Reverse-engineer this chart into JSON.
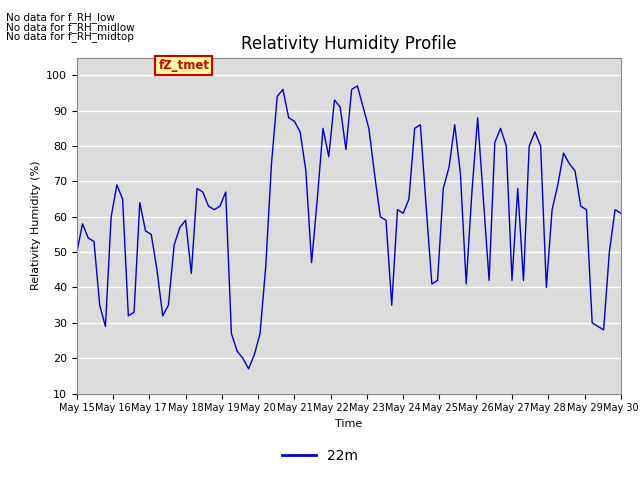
{
  "title": "Relativity Humidity Profile",
  "ylabel": "Relativity Humidity (%)",
  "xlabel": "Time",
  "ylim": [
    10,
    105
  ],
  "yticks": [
    10,
    20,
    30,
    40,
    50,
    60,
    70,
    80,
    90,
    100
  ],
  "legend_label": "22m",
  "line_color": "#0000CC",
  "bg_color": "#DCDCDC",
  "no_data_texts": [
    "No data for f_RH_low",
    "No data for f_RH_midlow",
    "No data for f_RH_midtop"
  ],
  "legend_box_color": "#FFFF99",
  "legend_box_edge": "#CC0000",
  "legend_text_color": "#CC0000",
  "tz_label": "fZ_tmet",
  "xticklabels": [
    "May 15",
    "May 16",
    "May 17",
    "May 18",
    "May 19",
    "May 20",
    "May 21",
    "May 22",
    "May 23",
    "May 24",
    "May 25",
    "May 26",
    "May 27",
    "May 28",
    "May 29",
    "May 30"
  ],
  "humidity_data": [
    50,
    58,
    54,
    53,
    35,
    29,
    60,
    69,
    65,
    32,
    33,
    64,
    56,
    55,
    45,
    32,
    35,
    52,
    57,
    59,
    44,
    68,
    67,
    63,
    62,
    63,
    67,
    27,
    22,
    20,
    17,
    21,
    27,
    46,
    75,
    94,
    96,
    88,
    87,
    84,
    73,
    47,
    65,
    85,
    77,
    93,
    91,
    79,
    96,
    97,
    91,
    85,
    72,
    60,
    59,
    35,
    62,
    61,
    65,
    85,
    86,
    63,
    41,
    42,
    68,
    74,
    86,
    72,
    41,
    67,
    88,
    65,
    42,
    81,
    85,
    80,
    42,
    68,
    42,
    80,
    84,
    80,
    40,
    62,
    69,
    78,
    75,
    73,
    63,
    62,
    30,
    29,
    28,
    50,
    62,
    61
  ]
}
